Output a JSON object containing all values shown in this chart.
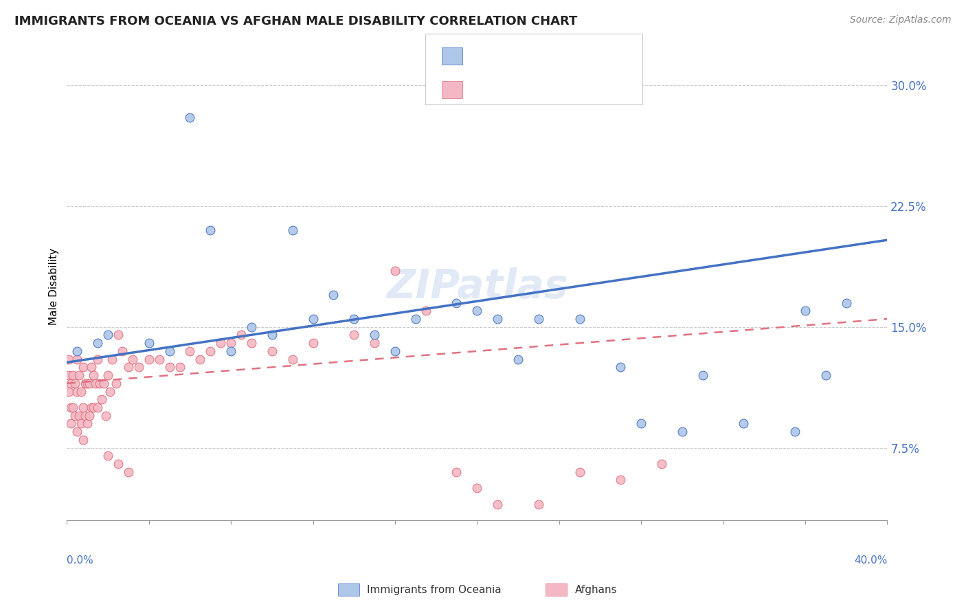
{
  "title": "IMMIGRANTS FROM OCEANIA VS AFGHAN MALE DISABILITY CORRELATION CHART",
  "source_text": "Source: ZipAtlas.com",
  "ylabel": "Male Disability",
  "right_yticks": [
    0.075,
    0.15,
    0.225,
    0.3
  ],
  "right_yticklabels": [
    "7.5%",
    "15.0%",
    "22.5%",
    "30.0%"
  ],
  "xlim": [
    0.0,
    0.4
  ],
  "ylim": [
    0.03,
    0.32
  ],
  "watermark": "ZIPatlas",
  "blue_color": "#4472c4",
  "pink_color": "#e07080",
  "blue_scatter_color": "#aec6e8",
  "pink_scatter_color": "#f4b8c4",
  "blue_line_intercept": 0.128,
  "blue_line_slope": 0.19,
  "pink_line_intercept": 0.115,
  "pink_line_slope": 0.1,
  "oceania_x": [
    0.005,
    0.015,
    0.02,
    0.04,
    0.05,
    0.06,
    0.07,
    0.08,
    0.09,
    0.1,
    0.11,
    0.12,
    0.13,
    0.14,
    0.15,
    0.16,
    0.17,
    0.19,
    0.2,
    0.21,
    0.22,
    0.23,
    0.25,
    0.27,
    0.28,
    0.3,
    0.31,
    0.33,
    0.355,
    0.36,
    0.37,
    0.38
  ],
  "oceania_y": [
    0.135,
    0.14,
    0.145,
    0.14,
    0.135,
    0.28,
    0.21,
    0.135,
    0.15,
    0.145,
    0.21,
    0.155,
    0.17,
    0.155,
    0.145,
    0.135,
    0.155,
    0.165,
    0.16,
    0.155,
    0.13,
    0.155,
    0.155,
    0.125,
    0.09,
    0.085,
    0.12,
    0.09,
    0.085,
    0.16,
    0.12,
    0.165
  ],
  "afghans_x": [
    0.001,
    0.001,
    0.001,
    0.002,
    0.002,
    0.002,
    0.003,
    0.003,
    0.004,
    0.004,
    0.005,
    0.005,
    0.005,
    0.006,
    0.006,
    0.007,
    0.007,
    0.008,
    0.008,
    0.008,
    0.009,
    0.009,
    0.01,
    0.01,
    0.011,
    0.011,
    0.012,
    0.012,
    0.013,
    0.013,
    0.014,
    0.015,
    0.015,
    0.016,
    0.017,
    0.018,
    0.019,
    0.02,
    0.021,
    0.022,
    0.024,
    0.025,
    0.027,
    0.03,
    0.032,
    0.035,
    0.04,
    0.045,
    0.05,
    0.055,
    0.06,
    0.065,
    0.07,
    0.075,
    0.08,
    0.085,
    0.09,
    0.1,
    0.11,
    0.12,
    0.14,
    0.15,
    0.16,
    0.175,
    0.19,
    0.2,
    0.21,
    0.23,
    0.25,
    0.27,
    0.29,
    0.02,
    0.025,
    0.03
  ],
  "afghans_y": [
    0.13,
    0.12,
    0.11,
    0.115,
    0.1,
    0.09,
    0.12,
    0.1,
    0.115,
    0.095,
    0.13,
    0.11,
    0.085,
    0.12,
    0.095,
    0.11,
    0.09,
    0.125,
    0.1,
    0.08,
    0.115,
    0.095,
    0.115,
    0.09,
    0.115,
    0.095,
    0.125,
    0.1,
    0.12,
    0.1,
    0.115,
    0.13,
    0.1,
    0.115,
    0.105,
    0.115,
    0.095,
    0.12,
    0.11,
    0.13,
    0.115,
    0.145,
    0.135,
    0.125,
    0.13,
    0.125,
    0.13,
    0.13,
    0.125,
    0.125,
    0.135,
    0.13,
    0.135,
    0.14,
    0.14,
    0.145,
    0.14,
    0.135,
    0.13,
    0.14,
    0.145,
    0.14,
    0.185,
    0.16,
    0.06,
    0.05,
    0.04,
    0.04,
    0.06,
    0.055,
    0.065,
    0.07,
    0.065,
    0.06
  ]
}
